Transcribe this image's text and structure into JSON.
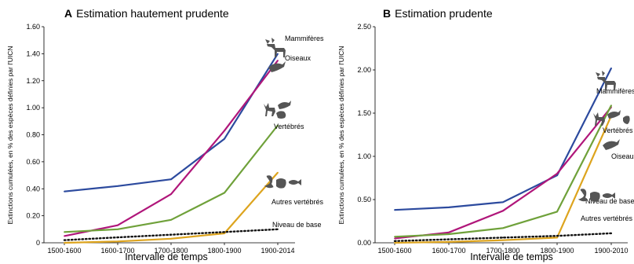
{
  "colors": {
    "mammals": "#2c4a9e",
    "birds": "#b0167a",
    "vertebrates": "#6fa13a",
    "other": "#dda41e",
    "baseline": "#111111"
  },
  "chart_data": [
    {
      "type": "line",
      "panel_letter": "A",
      "title": "Estimation hautement prudente",
      "xlabel": "Intervalle de temps",
      "ylabel": "Extinctions cumulées, en % des espèces définies par l'UICN",
      "categories": [
        "1500-1600",
        "1600-1700",
        "1700-1800",
        "1800-1900",
        "1900-2014"
      ],
      "ylim": [
        0,
        1.6
      ],
      "yticks": [
        "0",
        "0.20",
        "0.40",
        "0.60",
        "0.80",
        "1.00",
        "1.20",
        "1.40",
        "1.60"
      ],
      "grid": false,
      "series": [
        {
          "key": "mammals",
          "name": "Mammifères",
          "values": [
            0.38,
            0.42,
            0.47,
            0.77,
            1.4
          ]
        },
        {
          "key": "birds",
          "name": "Oiseaux",
          "values": [
            0.05,
            0.13,
            0.36,
            0.83,
            1.35
          ]
        },
        {
          "key": "vertebrates",
          "name": "Vertébrés",
          "values": [
            0.08,
            0.1,
            0.17,
            0.37,
            0.87
          ]
        },
        {
          "key": "other",
          "name": "Autres vertébrés",
          "values": [
            0.0,
            0.01,
            0.03,
            0.07,
            0.52
          ]
        },
        {
          "key": "baseline",
          "name": "Niveau de base",
          "values": [
            0.02,
            0.04,
            0.06,
            0.08,
            0.1
          ],
          "dotted": true
        }
      ]
    },
    {
      "type": "line",
      "panel_letter": "B",
      "title": "Estimation prudente",
      "xlabel": "Intervalle de temps",
      "ylabel": "Extinctions cumulées, en % des espèces définies par l'UICN",
      "categories": [
        "1500-1600",
        "1600-1700",
        "1700-1800",
        "1800-1900",
        "1900-2010"
      ],
      "ylim": [
        0,
        2.5
      ],
      "yticks": [
        "0.00",
        "0.50",
        "1.00",
        "1.50",
        "2.00",
        "2.50"
      ],
      "grid": false,
      "series": [
        {
          "key": "mammals",
          "name": "Mammifères",
          "values": [
            0.38,
            0.41,
            0.47,
            0.78,
            2.02
          ]
        },
        {
          "key": "birds",
          "name": "Oiseaux",
          "values": [
            0.05,
            0.12,
            0.37,
            0.8,
            1.57
          ]
        },
        {
          "key": "vertebrates",
          "name": "Vertébrés",
          "values": [
            0.07,
            0.1,
            0.17,
            0.36,
            1.59
          ]
        },
        {
          "key": "other",
          "name": "Autres vertébrés",
          "values": [
            0.0,
            0.01,
            0.03,
            0.06,
            1.47
          ]
        },
        {
          "key": "baseline",
          "name": "Niveau de base",
          "values": [
            0.02,
            0.04,
            0.06,
            0.08,
            0.11
          ],
          "dotted": true
        }
      ]
    }
  ]
}
